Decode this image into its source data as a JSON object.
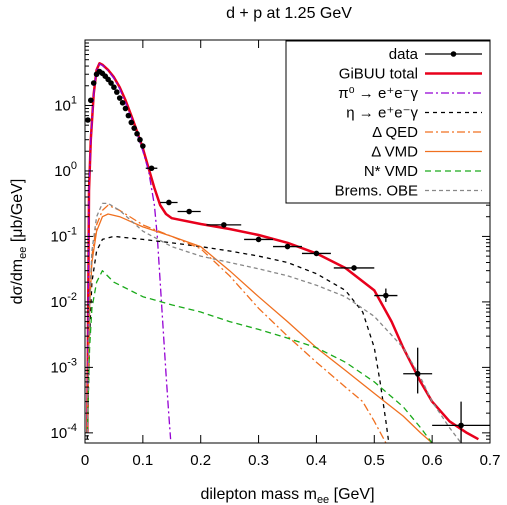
{
  "chart_data": {
    "type": "line",
    "title": "d + p at 1.25 GeV",
    "xlabel": "dilepton mass m",
    "xlabel_sub": "ee",
    "xlabel_unit": " [GeV]",
    "ylabel": "dσ/dm",
    "ylabel_sub": "ee",
    "ylabel_unit": " [μb/GeV]",
    "xlim": [
      0,
      0.7
    ],
    "ylim": [
      7e-05,
      100
    ],
    "yscale": "log",
    "x_ticks": [
      {
        "value": 0,
        "label": "0"
      },
      {
        "value": 0.1,
        "label": "0.1"
      },
      {
        "value": 0.2,
        "label": "0.2"
      },
      {
        "value": 0.3,
        "label": "0.3"
      },
      {
        "value": 0.4,
        "label": "0.4"
      },
      {
        "value": 0.5,
        "label": "0.5"
      },
      {
        "value": 0.6,
        "label": "0.6"
      },
      {
        "value": 0.7,
        "label": "0.7"
      }
    ],
    "y_ticks": [
      {
        "value": 0.0001,
        "base": "10",
        "exp": "-4"
      },
      {
        "value": 0.001,
        "base": "10",
        "exp": "-3"
      },
      {
        "value": 0.01,
        "base": "10",
        "exp": "-2"
      },
      {
        "value": 0.1,
        "base": "10",
        "exp": "-1"
      },
      {
        "value": 1,
        "base": "10",
        "exp": "0"
      },
      {
        "value": 10,
        "base": "10",
        "exp": "1"
      }
    ],
    "grid": false,
    "legend_position": "top-right",
    "data_points": {
      "name": "data",
      "color": "#000000",
      "points": [
        {
          "x": 0.005,
          "y": 6,
          "xerr": 0
        },
        {
          "x": 0.01,
          "y": 12,
          "xerr": 0
        },
        {
          "x": 0.015,
          "y": 22,
          "xerr": 0
        },
        {
          "x": 0.02,
          "y": 30,
          "xerr": 0
        },
        {
          "x": 0.025,
          "y": 33,
          "xerr": 0
        },
        {
          "x": 0.03,
          "y": 31,
          "xerr": 0
        },
        {
          "x": 0.035,
          "y": 28,
          "xerr": 0
        },
        {
          "x": 0.04,
          "y": 25,
          "xerr": 0
        },
        {
          "x": 0.045,
          "y": 22,
          "xerr": 0
        },
        {
          "x": 0.05,
          "y": 19,
          "xerr": 0
        },
        {
          "x": 0.055,
          "y": 16,
          "xerr": 0
        },
        {
          "x": 0.06,
          "y": 13,
          "xerr": 0
        },
        {
          "x": 0.065,
          "y": 11,
          "xerr": 0
        },
        {
          "x": 0.07,
          "y": 9,
          "xerr": 0
        },
        {
          "x": 0.075,
          "y": 7,
          "xerr": 0
        },
        {
          "x": 0.08,
          "y": 5.5,
          "xerr": 0
        },
        {
          "x": 0.085,
          "y": 4.5,
          "xerr": 0
        },
        {
          "x": 0.09,
          "y": 3.7,
          "xerr": 0
        },
        {
          "x": 0.095,
          "y": 3.0,
          "xerr": 0
        },
        {
          "x": 0.1,
          "y": 2.4,
          "xerr": 0
        },
        {
          "x": 0.115,
          "y": 1.1,
          "xerr": 0.01
        },
        {
          "x": 0.145,
          "y": 0.33,
          "xerr": 0.015
        },
        {
          "x": 0.18,
          "y": 0.24,
          "xerr": 0.02
        },
        {
          "x": 0.24,
          "y": 0.15,
          "xerr": 0.03
        },
        {
          "x": 0.3,
          "y": 0.09,
          "xerr": 0.025
        },
        {
          "x": 0.35,
          "y": 0.07,
          "xerr": 0.025
        },
        {
          "x": 0.4,
          "y": 0.055,
          "xerr": 0.025
        },
        {
          "x": 0.465,
          "y": 0.033,
          "xerr": 0.035
        },
        {
          "x": 0.52,
          "y": 0.0125,
          "xerr": 0.02,
          "yerr_low": 0.01,
          "yerr_high": 0.016
        },
        {
          "x": 0.575,
          "y": 0.0008,
          "xerr": 0.025,
          "yerr_low": 0.0004,
          "yerr_high": 0.002
        },
        {
          "x": 0.65,
          "y": 0.00013,
          "xerr": 0.05,
          "yerr_low": 5e-05,
          "yerr_high": 0.0003
        }
      ]
    },
    "series": [
      {
        "name": "GiBUU total",
        "color": "#e8001c",
        "dash": "",
        "width": 2.5,
        "points": [
          [
            0.004,
            0.0001
          ],
          [
            0.007,
            0.5
          ],
          [
            0.01,
            3
          ],
          [
            0.015,
            15
          ],
          [
            0.02,
            35
          ],
          [
            0.025,
            44
          ],
          [
            0.03,
            42
          ],
          [
            0.04,
            35
          ],
          [
            0.05,
            27
          ],
          [
            0.06,
            19
          ],
          [
            0.07,
            12
          ],
          [
            0.08,
            7
          ],
          [
            0.09,
            4
          ],
          [
            0.1,
            2.2
          ],
          [
            0.11,
            1.1
          ],
          [
            0.12,
            0.55
          ],
          [
            0.13,
            0.3
          ],
          [
            0.14,
            0.22
          ],
          [
            0.15,
            0.19
          ],
          [
            0.2,
            0.155
          ],
          [
            0.25,
            0.13
          ],
          [
            0.3,
            0.105
          ],
          [
            0.35,
            0.08
          ],
          [
            0.4,
            0.055
          ],
          [
            0.45,
            0.033
          ],
          [
            0.5,
            0.015
          ],
          [
            0.53,
            0.005
          ],
          [
            0.55,
            0.002
          ],
          [
            0.58,
            0.0006
          ],
          [
            0.6,
            0.0003
          ],
          [
            0.63,
            0.00015
          ],
          [
            0.66,
            0.0001
          ],
          [
            0.68,
            8e-05
          ]
        ]
      },
      {
        "name": "π0 → e+e-γ",
        "legend_text": "π⁰ → e⁺e⁻γ",
        "color": "#9400d3",
        "dash": "8,3,2,3",
        "width": 1.3,
        "points": [
          [
            0.004,
            0.0001
          ],
          [
            0.007,
            0.5
          ],
          [
            0.01,
            3
          ],
          [
            0.015,
            15
          ],
          [
            0.02,
            35
          ],
          [
            0.025,
            43
          ],
          [
            0.03,
            41
          ],
          [
            0.04,
            34
          ],
          [
            0.05,
            26
          ],
          [
            0.06,
            18
          ],
          [
            0.07,
            11
          ],
          [
            0.08,
            6.5
          ],
          [
            0.09,
            3.7
          ],
          [
            0.1,
            2
          ],
          [
            0.11,
            1
          ],
          [
            0.12,
            0.3
          ],
          [
            0.125,
            0.1
          ],
          [
            0.13,
            0.02
          ],
          [
            0.135,
            0.004
          ],
          [
            0.14,
            0.0008
          ],
          [
            0.145,
            0.00018
          ],
          [
            0.148,
            8e-05
          ]
        ]
      },
      {
        "name": "η → e+e-γ",
        "legend_text": "η → e⁺e⁻γ",
        "color": "#000000",
        "dash": "4,4",
        "width": 1.3,
        "points": [
          [
            0.004,
            8e-05
          ],
          [
            0.008,
            0.003
          ],
          [
            0.012,
            0.02
          ],
          [
            0.02,
            0.06
          ],
          [
            0.03,
            0.09
          ],
          [
            0.05,
            0.1
          ],
          [
            0.1,
            0.09
          ],
          [
            0.15,
            0.08
          ],
          [
            0.2,
            0.07
          ],
          [
            0.25,
            0.06
          ],
          [
            0.3,
            0.05
          ],
          [
            0.35,
            0.04
          ],
          [
            0.4,
            0.027
          ],
          [
            0.45,
            0.015
          ],
          [
            0.48,
            0.007
          ],
          [
            0.5,
            0.002
          ],
          [
            0.51,
            0.0006
          ],
          [
            0.52,
            0.00015
          ],
          [
            0.525,
            7e-05
          ]
        ]
      },
      {
        "name": "Δ QED",
        "legend_text": "Δ QED",
        "color": "#f07020",
        "dash": "8,3,2,3",
        "width": 1.3,
        "points": [
          [
            0.004,
            0.0001
          ],
          [
            0.008,
            0.01
          ],
          [
            0.012,
            0.05
          ],
          [
            0.02,
            0.15
          ],
          [
            0.03,
            0.25
          ],
          [
            0.04,
            0.3
          ],
          [
            0.06,
            0.25
          ],
          [
            0.1,
            0.15
          ],
          [
            0.15,
            0.1
          ],
          [
            0.2,
            0.065
          ],
          [
            0.25,
            0.025
          ],
          [
            0.3,
            0.008
          ],
          [
            0.35,
            0.003
          ],
          [
            0.4,
            0.0012
          ],
          [
            0.45,
            0.0005
          ],
          [
            0.48,
            0.0003
          ],
          [
            0.5,
            0.00015
          ],
          [
            0.52,
            7e-05
          ]
        ]
      },
      {
        "name": "Δ VMD",
        "legend_text": "Δ VMD",
        "color": "#f07020",
        "dash": "",
        "width": 1.3,
        "points": [
          [
            0.004,
            0.0001
          ],
          [
            0.008,
            0.008
          ],
          [
            0.012,
            0.04
          ],
          [
            0.02,
            0.12
          ],
          [
            0.03,
            0.2
          ],
          [
            0.04,
            0.22
          ],
          [
            0.06,
            0.2
          ],
          [
            0.1,
            0.14
          ],
          [
            0.15,
            0.1
          ],
          [
            0.2,
            0.07
          ],
          [
            0.25,
            0.03
          ],
          [
            0.3,
            0.012
          ],
          [
            0.35,
            0.005
          ],
          [
            0.4,
            0.002
          ],
          [
            0.45,
            0.0009
          ],
          [
            0.5,
            0.0004
          ],
          [
            0.55,
            0.00018
          ],
          [
            0.58,
            0.0001
          ],
          [
            0.6,
            7e-05
          ]
        ]
      },
      {
        "name": "N* VMD",
        "legend_text": "N* VMD",
        "color": "#1aaa1a",
        "dash": "6,4",
        "width": 1.3,
        "points": [
          [
            0.004,
            0.0001
          ],
          [
            0.008,
            0.002
          ],
          [
            0.012,
            0.008
          ],
          [
            0.02,
            0.02
          ],
          [
            0.03,
            0.03
          ],
          [
            0.05,
            0.02
          ],
          [
            0.1,
            0.012
          ],
          [
            0.15,
            0.009
          ],
          [
            0.2,
            0.007
          ],
          [
            0.25,
            0.005
          ],
          [
            0.3,
            0.0038
          ],
          [
            0.35,
            0.0028
          ],
          [
            0.4,
            0.002
          ],
          [
            0.45,
            0.0012
          ],
          [
            0.5,
            0.0006
          ],
          [
            0.55,
            0.00025
          ],
          [
            0.58,
            0.00012
          ],
          [
            0.6,
            7e-05
          ]
        ]
      },
      {
        "name": "Brems. OBE",
        "legend_text": "Brems. OBE",
        "color": "#888888",
        "dash": "4,3",
        "width": 1.3,
        "points": [
          [
            0.004,
            0.0001
          ],
          [
            0.008,
            0.01
          ],
          [
            0.012,
            0.06
          ],
          [
            0.02,
            0.2
          ],
          [
            0.03,
            0.32
          ],
          [
            0.04,
            0.32
          ],
          [
            0.06,
            0.25
          ],
          [
            0.1,
            0.12
          ],
          [
            0.15,
            0.07
          ],
          [
            0.2,
            0.05
          ],
          [
            0.25,
            0.04
          ],
          [
            0.3,
            0.032
          ],
          [
            0.35,
            0.025
          ],
          [
            0.4,
            0.018
          ],
          [
            0.45,
            0.012
          ],
          [
            0.5,
            0.006
          ],
          [
            0.55,
            0.002
          ],
          [
            0.58,
            0.0007
          ],
          [
            0.6,
            0.0003
          ],
          [
            0.63,
            0.00012
          ],
          [
            0.65,
            7e-05
          ]
        ]
      }
    ]
  }
}
